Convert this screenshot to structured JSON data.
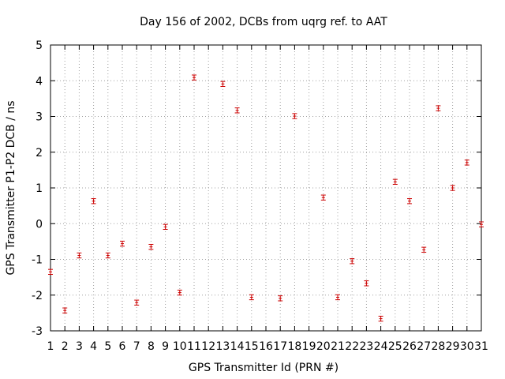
{
  "chart_data": {
    "type": "scatter",
    "title": "Day 156 of 2002, DCBs from uqrg ref. to AAT",
    "xlabel": "GPS Transmitter Id (PRN #)",
    "ylabel": "GPS Transmitter P1-P2 DCB / ns",
    "xlim": [
      1,
      31
    ],
    "ylim": [
      -3,
      5
    ],
    "x_ticks": [
      1,
      2,
      3,
      4,
      5,
      6,
      7,
      8,
      9,
      10,
      11,
      12,
      13,
      14,
      15,
      16,
      17,
      18,
      19,
      20,
      21,
      22,
      23,
      24,
      25,
      26,
      27,
      28,
      29,
      30,
      31
    ],
    "y_ticks": [
      -3,
      -2,
      -1,
      0,
      1,
      2,
      3,
      4,
      5
    ],
    "grid": true,
    "marker_color": "#cc0000",
    "series": [
      {
        "name": "DCB",
        "points": [
          {
            "prn": 1,
            "value": -1.35,
            "error": 0.07
          },
          {
            "prn": 2,
            "value": -2.43,
            "error": 0.07
          },
          {
            "prn": 3,
            "value": -0.89,
            "error": 0.07
          },
          {
            "prn": 4,
            "value": 0.63,
            "error": 0.07
          },
          {
            "prn": 5,
            "value": -0.89,
            "error": 0.07
          },
          {
            "prn": 6,
            "value": -0.56,
            "error": 0.07
          },
          {
            "prn": 7,
            "value": -2.21,
            "error": 0.07
          },
          {
            "prn": 8,
            "value": -0.65,
            "error": 0.07
          },
          {
            "prn": 9,
            "value": -0.09,
            "error": 0.07
          },
          {
            "prn": 10,
            "value": -1.93,
            "error": 0.07
          },
          {
            "prn": 11,
            "value": 4.09,
            "error": 0.07
          },
          {
            "prn": 13,
            "value": 3.91,
            "error": 0.07
          },
          {
            "prn": 14,
            "value": 3.17,
            "error": 0.07
          },
          {
            "prn": 15,
            "value": -2.06,
            "error": 0.07
          },
          {
            "prn": 17,
            "value": -2.09,
            "error": 0.07
          },
          {
            "prn": 18,
            "value": 3.01,
            "error": 0.07
          },
          {
            "prn": 20,
            "value": 0.73,
            "error": 0.07
          },
          {
            "prn": 21,
            "value": -2.06,
            "error": 0.07
          },
          {
            "prn": 22,
            "value": -1.05,
            "error": 0.07
          },
          {
            "prn": 23,
            "value": -1.67,
            "error": 0.07
          },
          {
            "prn": 24,
            "value": -2.66,
            "error": 0.07
          },
          {
            "prn": 25,
            "value": 1.17,
            "error": 0.07
          },
          {
            "prn": 26,
            "value": 0.63,
            "error": 0.07
          },
          {
            "prn": 27,
            "value": -0.73,
            "error": 0.07
          },
          {
            "prn": 28,
            "value": 3.23,
            "error": 0.07
          },
          {
            "prn": 29,
            "value": 1.0,
            "error": 0.07
          },
          {
            "prn": 30,
            "value": 1.71,
            "error": 0.07
          },
          {
            "prn": 31,
            "value": -0.02,
            "error": 0.07
          }
        ]
      }
    ]
  }
}
